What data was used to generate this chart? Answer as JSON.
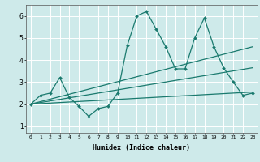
{
  "xlabel": "Humidex (Indice chaleur)",
  "background_color": "#ceeaea",
  "grid_color": "#ffffff",
  "line_color": "#1a7a6e",
  "xlim": [
    -0.5,
    23.5
  ],
  "ylim": [
    0.7,
    6.5
  ],
  "xticks": [
    0,
    1,
    2,
    3,
    4,
    5,
    6,
    7,
    8,
    9,
    10,
    11,
    12,
    13,
    14,
    15,
    16,
    17,
    18,
    19,
    20,
    21,
    22,
    23
  ],
  "yticks": [
    1,
    2,
    3,
    4,
    5,
    6
  ],
  "series": [
    {
      "x": [
        0,
        1,
        2,
        3,
        4,
        5,
        6,
        7,
        8,
        9,
        10,
        11,
        12,
        13,
        14,
        15,
        16,
        17,
        18,
        19,
        20,
        21,
        22,
        23
      ],
      "y": [
        2.0,
        2.4,
        2.5,
        3.2,
        2.3,
        1.9,
        1.45,
        1.8,
        1.9,
        2.5,
        4.65,
        6.0,
        6.2,
        5.4,
        4.6,
        3.6,
        3.6,
        5.0,
        5.9,
        4.6,
        3.65,
        3.0,
        2.4,
        2.5
      ],
      "marker": "D",
      "markersize": 2.0,
      "linewidth": 0.9
    },
    {
      "x": [
        0,
        23
      ],
      "y": [
        2.0,
        4.6
      ],
      "marker": null,
      "linewidth": 0.9
    },
    {
      "x": [
        0,
        23
      ],
      "y": [
        2.0,
        3.65
      ],
      "marker": null,
      "linewidth": 0.9
    },
    {
      "x": [
        0,
        23
      ],
      "y": [
        2.0,
        2.55
      ],
      "marker": null,
      "linewidth": 0.9
    }
  ]
}
